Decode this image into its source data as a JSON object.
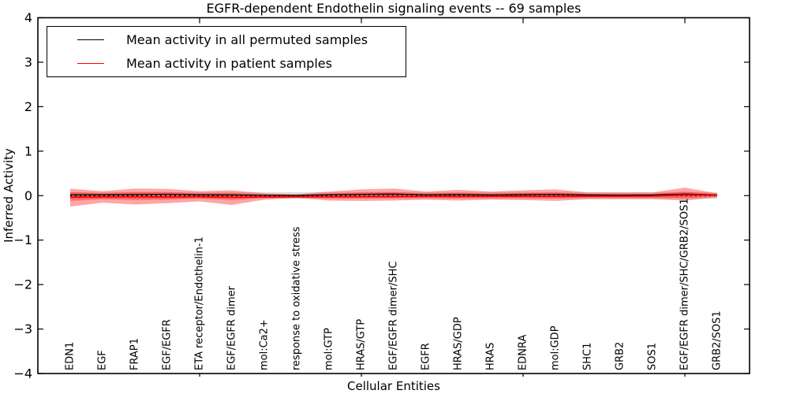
{
  "legend": {
    "items": [
      {
        "label": "Mean activity in all permuted samples",
        "color": "#000000"
      },
      {
        "label": "Mean activity in patient samples",
        "color": "#ff0000"
      }
    ]
  },
  "chart_data": {
    "type": "line",
    "title": "EGFR-dependent Endothelin signaling events -- 69 samples",
    "xlabel": "Cellular Entities",
    "ylabel": "Inferred Activity",
    "xlim": [
      0,
      22
    ],
    "ylim": [
      -4,
      4
    ],
    "grid": false,
    "legend_position": "upper left",
    "ytick_values": [
      4,
      3,
      2,
      1,
      0,
      -1,
      -2,
      -3,
      -4
    ],
    "ytick_labels": [
      "4",
      "3",
      "2",
      "1",
      "0",
      "−1",
      "−2",
      "−3",
      "−4"
    ],
    "xtick_values": [
      5,
      10,
      15,
      20
    ],
    "categories": [
      "EDN1",
      "EGF",
      "FRAP1",
      "EGF/EGFR",
      "ETA receptor/Endothelin-1",
      "EGF/EGFR dimer",
      "mol:Ca2+",
      "response to oxidative stress",
      "mol:GTP",
      "HRAS/GTP",
      "EGF/EGFR dimer/SHC",
      "EGFR",
      "HRAS/GDP",
      "HRAS",
      "EDNRA",
      "mol:GDP",
      "SHC1",
      "GRB2",
      "SOS1",
      "EGF/EGFR dimer/SHC/GRB2/SOS1",
      "GRB2/SOS1"
    ],
    "x": [
      1,
      2,
      3,
      4,
      5,
      6,
      7,
      8,
      9,
      10,
      11,
      12,
      13,
      14,
      15,
      16,
      17,
      18,
      19,
      20,
      21
    ],
    "series": [
      {
        "name": "Mean activity in all permuted samples",
        "color": "#000000",
        "width": 1.2,
        "values": [
          0.02,
          0.02,
          0.025,
          0.03,
          0.02,
          0.015,
          0.01,
          0.005,
          0.02,
          0.03,
          0.035,
          0.02,
          0.025,
          0.015,
          0.025,
          0.03,
          0.015,
          0.012,
          0.015,
          0.035,
          0.02
        ]
      },
      {
        "name": "Mean activity in patient samples",
        "color": "#ff0000",
        "width": 1.8,
        "values": [
          -0.032,
          -0.028,
          -0.027,
          -0.03,
          -0.025,
          -0.035,
          -0.03,
          -0.028,
          -0.027,
          -0.022,
          -0.02,
          -0.018,
          -0.02,
          -0.015,
          -0.014,
          -0.015,
          -0.012,
          -0.012,
          -0.01,
          0.018,
          0.012
        ]
      }
    ],
    "bands": [
      {
        "name": "permuted-sample-range",
        "color": "#000000",
        "opacity": 0.13,
        "upper": [
          0.08,
          0.08,
          0.08,
          0.08,
          0.08,
          0.08,
          0.08,
          0.08,
          0.08,
          0.08,
          0.08,
          0.08,
          0.08,
          0.08,
          0.08,
          0.08,
          0.08,
          0.08,
          0.08,
          0.08,
          0.08
        ],
        "lower": [
          -0.07,
          -0.07,
          -0.07,
          -0.07,
          -0.07,
          -0.07,
          -0.07,
          -0.07,
          -0.07,
          -0.07,
          -0.07,
          -0.07,
          -0.07,
          -0.07,
          -0.07,
          -0.07,
          -0.07,
          -0.07,
          -0.07,
          -0.07,
          -0.07
        ]
      },
      {
        "name": "patient-sample-range-outer",
        "color": "#ff0000",
        "opacity": 0.35,
        "upper": [
          0.155,
          0.1,
          0.16,
          0.15,
          0.1,
          0.12,
          0.05,
          0.03,
          0.09,
          0.14,
          0.16,
          0.09,
          0.13,
          0.09,
          0.12,
          0.14,
          0.07,
          0.07,
          0.07,
          0.18,
          0.05
        ],
        "lower": [
          -0.245,
          -0.16,
          -0.2,
          -0.17,
          -0.13,
          -0.21,
          -0.09,
          -0.05,
          -0.11,
          -0.12,
          -0.11,
          -0.09,
          -0.11,
          -0.09,
          -0.1,
          -0.12,
          -0.08,
          -0.08,
          -0.08,
          -0.11,
          -0.04
        ]
      },
      {
        "name": "patient-sample-range-inner",
        "color": "#ff0000",
        "opacity": 0.3,
        "upper": [
          0.08,
          0.05,
          0.08,
          0.08,
          0.05,
          0.06,
          0.025,
          0.015,
          0.045,
          0.07,
          0.08,
          0.045,
          0.065,
          0.045,
          0.06,
          0.07,
          0.035,
          0.035,
          0.035,
          0.09,
          0.025
        ],
        "lower": [
          -0.12,
          -0.08,
          -0.1,
          -0.09,
          -0.06,
          -0.1,
          -0.045,
          -0.025,
          -0.055,
          -0.06,
          -0.055,
          -0.045,
          -0.055,
          -0.045,
          -0.05,
          -0.06,
          -0.04,
          -0.04,
          -0.04,
          -0.055,
          -0.02
        ]
      }
    ],
    "reference_line": {
      "y": 0,
      "style": "dotted",
      "color": "#000000"
    }
  }
}
